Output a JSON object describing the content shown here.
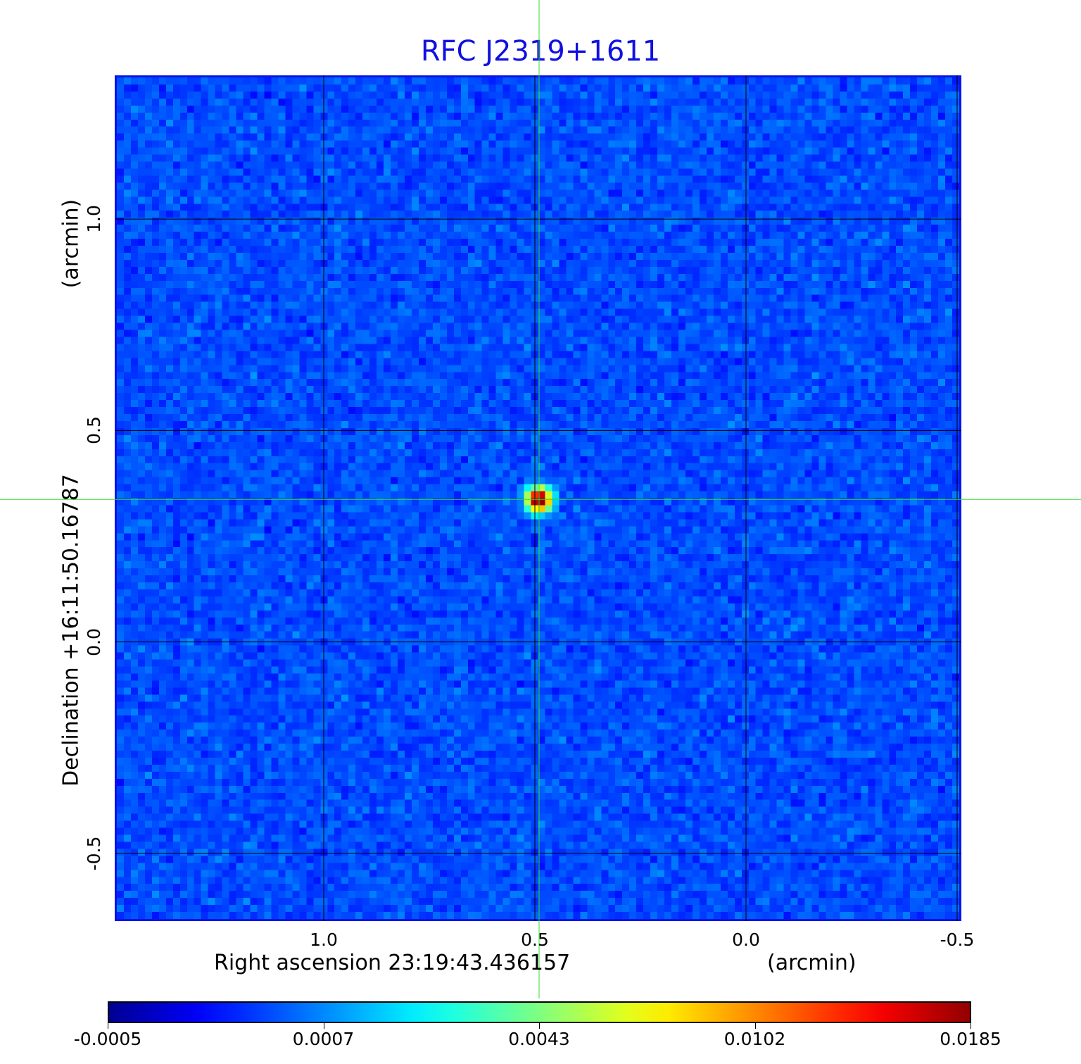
{
  "chart_data": {
    "type": "heatmap",
    "title": "RFC J2319+1611",
    "xlabel": "Right ascension  23:19:43.436157",
    "xunit": "(arcmin)",
    "ylabel": "Declination  +16:11:50.16787",
    "yunit": "(arcmin)",
    "xlim": [
      1.495,
      -0.51
    ],
    "ylim": [
      -0.66,
      1.34
    ],
    "x_ticks": [
      "1.0",
      "0.5",
      "0.0",
      "-0.5"
    ],
    "x_tick_values": [
      1.0,
      0.5,
      0.0,
      -0.5
    ],
    "y_ticks": [
      "1.0",
      "0.5",
      "0.0",
      "-0.5"
    ],
    "y_tick_values": [
      1.0,
      0.5,
      0.0,
      -0.5
    ],
    "grid": true,
    "grid_color": "#000000",
    "crosshair": {
      "x": 0.49,
      "y": 0.337,
      "color": "#33dd33"
    },
    "source_peak": {
      "x": 0.49,
      "y": 0.337,
      "value": 0.0185
    },
    "colormap": "jet",
    "colorbar": {
      "orientation": "horizontal",
      "placement": "bottom",
      "tick_labels": [
        "-0.0005",
        "0.0007",
        "0.0043",
        "0.0102",
        "0.0185"
      ],
      "tick_values": [
        -0.0005,
        0.0007,
        0.0043,
        0.0102,
        0.0185
      ]
    }
  }
}
